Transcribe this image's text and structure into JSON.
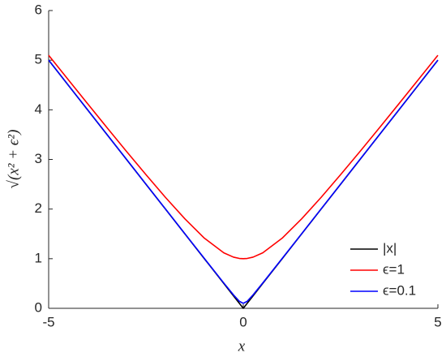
{
  "chart_data": {
    "type": "line",
    "x": [
      -5,
      -4.5,
      -4,
      -3.5,
      -3,
      -2.5,
      -2,
      -1.5,
      -1,
      -0.5,
      -0.25,
      -0.1,
      0,
      0.1,
      0.25,
      0.5,
      1,
      1.5,
      2,
      2.5,
      3,
      3.5,
      4,
      4.5,
      5
    ],
    "series": [
      {
        "name": "|x|",
        "color": "#000000",
        "values": [
          5,
          4.5,
          4,
          3.5,
          3,
          2.5,
          2,
          1.5,
          1,
          0.5,
          0.25,
          0.1,
          0,
          0.1,
          0.25,
          0.5,
          1,
          1.5,
          2,
          2.5,
          3,
          3.5,
          4,
          4.5,
          5
        ]
      },
      {
        "name": "ϵ=1",
        "color": "#ff0000",
        "values": [
          5.099,
          4.61,
          4.123,
          3.64,
          3.162,
          2.693,
          2.236,
          1.803,
          1.414,
          1.118,
          1.031,
          1.005,
          1,
          1.005,
          1.031,
          1.118,
          1.414,
          1.803,
          2.236,
          2.693,
          3.162,
          3.64,
          4.123,
          4.61,
          5.099
        ]
      },
      {
        "name": "ϵ=0.1",
        "color": "#0000ff",
        "values": [
          5.001,
          4.501,
          4.001,
          3.501,
          3.002,
          2.502,
          2.002,
          1.503,
          1.005,
          0.51,
          0.269,
          0.141,
          0.1,
          0.141,
          0.269,
          0.51,
          1.005,
          1.503,
          2.002,
          2.502,
          3.002,
          3.501,
          4.001,
          4.501,
          5.001
        ]
      }
    ],
    "xlabel": "x",
    "ylabel": "√(x² + ϵ²)",
    "xlim": [
      -5,
      5
    ],
    "ylim": [
      0,
      6
    ],
    "xticks": [
      -5,
      0,
      5
    ],
    "yticks": [
      0,
      1,
      2,
      3,
      4,
      5,
      6
    ],
    "legend": "lower right"
  }
}
